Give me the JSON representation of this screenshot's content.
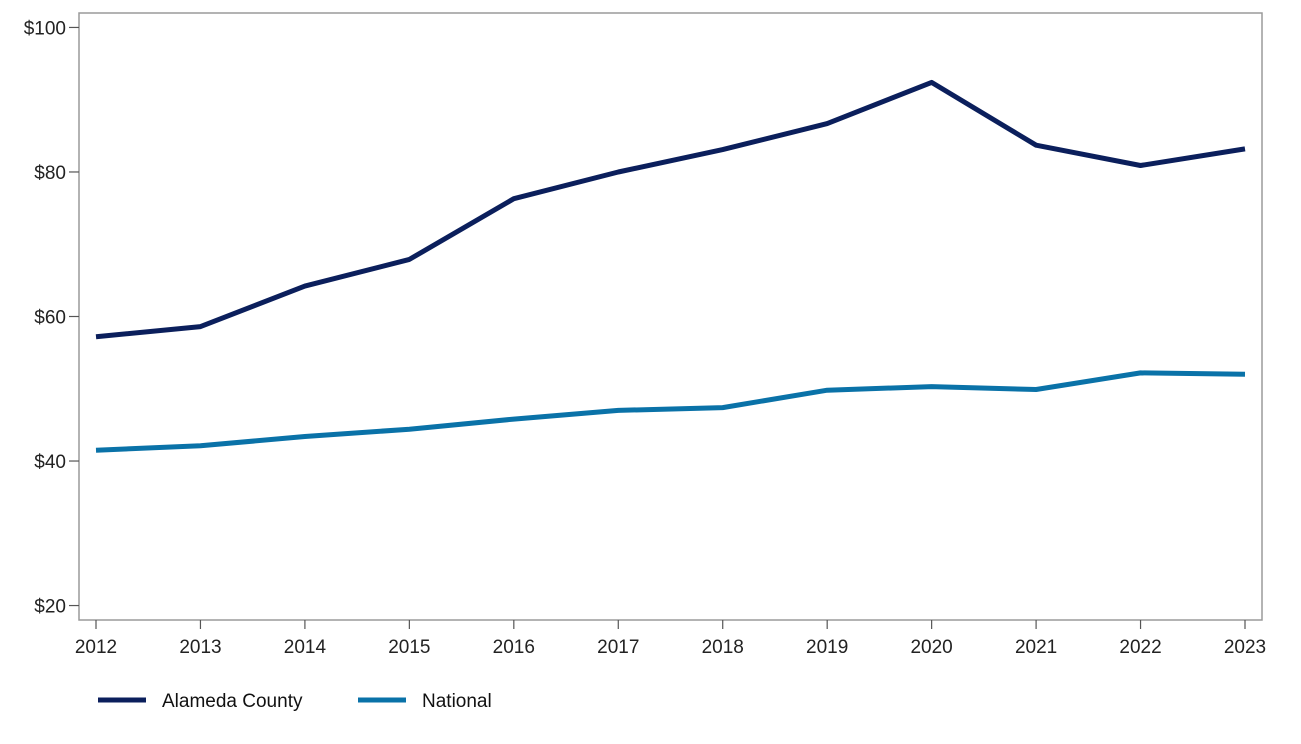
{
  "chart_data": {
    "type": "line",
    "title": "",
    "xlabel": "",
    "ylabel": "",
    "x": [
      "2012",
      "2013",
      "2014",
      "2015",
      "2016",
      "2017",
      "2018",
      "2019",
      "2020",
      "2021",
      "2022",
      "2023"
    ],
    "y_ticks": [
      "$20",
      "$40",
      "$60",
      "$80",
      "$100"
    ],
    "ylim": [
      18,
      102
    ],
    "grid": false,
    "legend_position": "bottom-left",
    "series": [
      {
        "name": "Alameda County",
        "color": "#0b1f5c",
        "values": [
          57.2,
          58.6,
          64.2,
          67.9,
          76.3,
          80.0,
          83.1,
          86.7,
          92.4,
          83.7,
          80.9,
          83.2
        ]
      },
      {
        "name": "National",
        "color": "#0a72a8",
        "values": [
          41.5,
          42.1,
          43.4,
          44.4,
          45.8,
          47.0,
          47.4,
          49.8,
          50.3,
          49.9,
          52.2,
          52.0
        ]
      }
    ]
  }
}
